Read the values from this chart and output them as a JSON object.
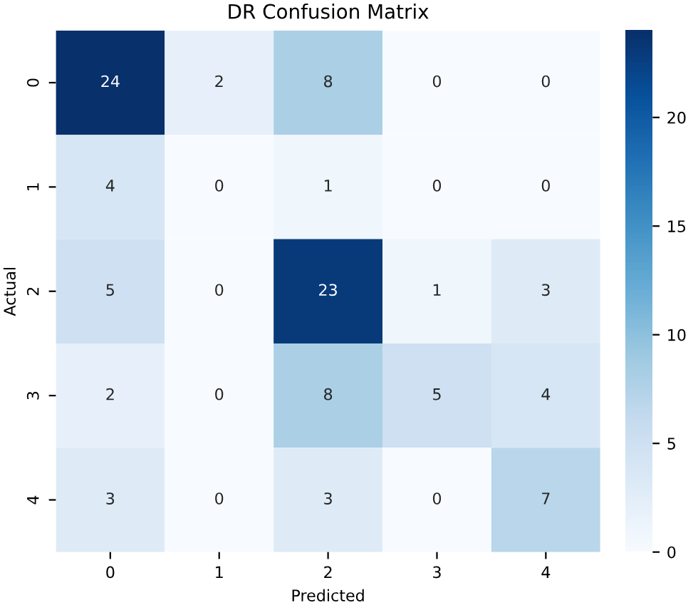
{
  "chart_data": {
    "type": "heatmap",
    "title": "DR Confusion Matrix",
    "xlabel": "Predicted",
    "ylabel": "Actual",
    "categories": [
      "0",
      "1",
      "2",
      "3",
      "4"
    ],
    "y_categories": [
      "0",
      "1",
      "2",
      "3",
      "4"
    ],
    "cells": [
      [
        24,
        2,
        8,
        0,
        0
      ],
      [
        4,
        0,
        1,
        0,
        0
      ],
      [
        5,
        0,
        23,
        1,
        3
      ],
      [
        2,
        0,
        8,
        5,
        4
      ],
      [
        3,
        0,
        3,
        0,
        7
      ]
    ],
    "clim": [
      0,
      24
    ],
    "cticks": [
      0,
      5,
      10,
      15,
      20
    ],
    "data_labels": true
  }
}
